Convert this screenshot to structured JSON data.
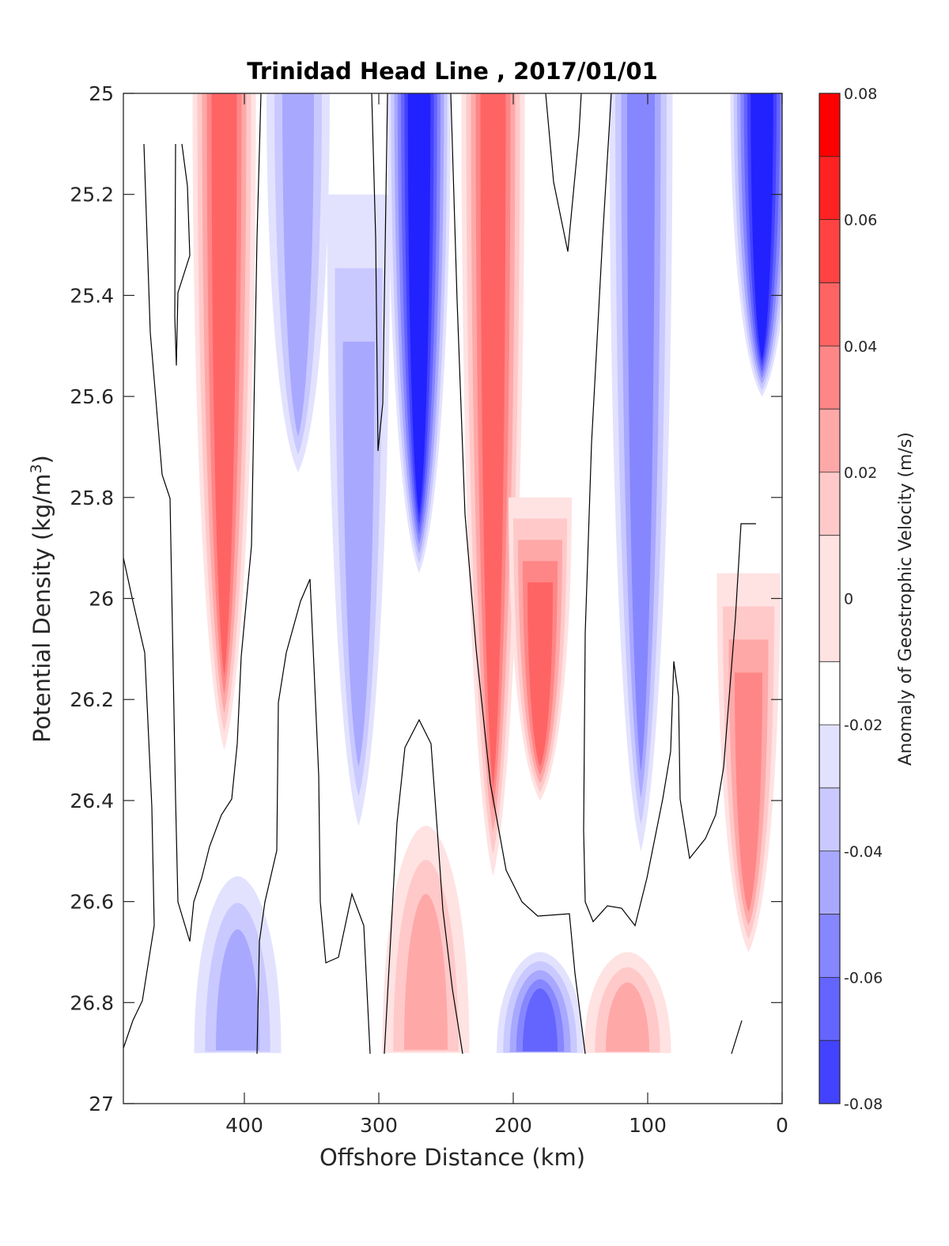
{
  "chart_data": {
    "type": "heatmap",
    "title": "Trinidad Head Line , 2017/01/01",
    "xlabel": "Offshore Distance (km)",
    "ylabel": "Potential Density (kg/m",
    "ylabel_sup": "3",
    "ylabel_tail": ")",
    "xlim": [
      490,
      0
    ],
    "ylim": [
      25,
      27
    ],
    "x_reversed": true,
    "y_reversed": true,
    "x_ticks": [
      400,
      300,
      200,
      100,
      0
    ],
    "y_ticks": [
      25,
      25.2,
      25.4,
      25.6,
      25.8,
      26,
      26.2,
      26.4,
      26.6,
      26.8,
      27
    ],
    "y_tick_labels": [
      "25",
      "25.2",
      "25.4",
      "25.6",
      "25.8",
      "26",
      "26.2",
      "26.4",
      "26.6",
      "26.8",
      "27"
    ],
    "data_extent": {
      "density_top": 25.0,
      "density_bottom": 26.9
    },
    "colorbar": {
      "label": "Anomaly of Geostrophic Velocity (m/s)",
      "limits": [
        -0.08,
        0.08
      ],
      "tick_values": [
        0.08,
        0.06,
        0.04,
        0.02,
        0,
        -0.02,
        -0.04,
        -0.06,
        -0.08
      ],
      "tick_labels": [
        "0.08",
        "0.06",
        "0.04",
        "0.02",
        "0",
        "-0.02",
        "-0.04",
        "-0.06",
        "-0.08"
      ],
      "levels": [
        -0.08,
        -0.07,
        -0.06,
        -0.05,
        -0.04,
        -0.03,
        -0.02,
        -0.01,
        0.01,
        0.02,
        0.03,
        0.04,
        0.05,
        0.06,
        0.07,
        0.08
      ],
      "colors": [
        "#ff0000",
        "#ff2222",
        "#ff4343",
        "#ff6464",
        "#ff8686",
        "#ffa8a8",
        "#ffc9c9",
        "#ffe2e2",
        "#ffffff",
        "#e2e2ff",
        "#c9c9ff",
        "#a8a8ff",
        "#8686ff",
        "#6464ff",
        "#4343ff",
        "#2222ff",
        "#0000ff"
      ]
    },
    "zero_contour": true,
    "features": [
      {
        "kind": "jet",
        "sign": "positive",
        "center_km": 415,
        "density_range": [
          25.0,
          26.3
        ],
        "peak": 0.05
      },
      {
        "kind": "jet",
        "sign": "negative",
        "center_km": 360,
        "density_range": [
          25.0,
          25.75
        ],
        "peak": -0.03
      },
      {
        "kind": "jet",
        "sign": "negative",
        "center_km": 315,
        "density_range": [
          25.2,
          26.45
        ],
        "peak": -0.03
      },
      {
        "kind": "jet",
        "sign": "negative",
        "center_km": 270,
        "density_range": [
          25.0,
          25.95
        ],
        "peak": -0.07
      },
      {
        "kind": "jet",
        "sign": "positive",
        "center_km": 215,
        "density_range": [
          25.0,
          26.55
        ],
        "peak": 0.05
      },
      {
        "kind": "jet",
        "sign": "positive",
        "center_km": 180,
        "density_range": [
          25.8,
          26.4
        ],
        "peak": 0.05
      },
      {
        "kind": "jet",
        "sign": "negative",
        "center_km": 105,
        "density_range": [
          25.0,
          26.5
        ],
        "peak": -0.04
      },
      {
        "kind": "jet",
        "sign": "negative",
        "center_km": 15,
        "density_range": [
          25.0,
          25.6
        ],
        "peak": -0.07
      },
      {
        "kind": "jet",
        "sign": "positive",
        "center_km": 25,
        "density_range": [
          25.95,
          26.7
        ],
        "peak": 0.04
      },
      {
        "kind": "patch",
        "sign": "negative",
        "center_km": 180,
        "density_range": [
          26.7,
          26.9
        ],
        "peak": -0.05
      },
      {
        "kind": "patch",
        "sign": "positive",
        "center_km": 265,
        "density_range": [
          26.45,
          26.9
        ],
        "peak": 0.03
      },
      {
        "kind": "patch",
        "sign": "positive",
        "center_km": 115,
        "density_range": [
          26.7,
          26.9
        ],
        "peak": 0.03
      },
      {
        "kind": "patch",
        "sign": "negative",
        "center_km": 405,
        "density_range": [
          26.55,
          26.9
        ],
        "peak": -0.03
      }
    ]
  }
}
